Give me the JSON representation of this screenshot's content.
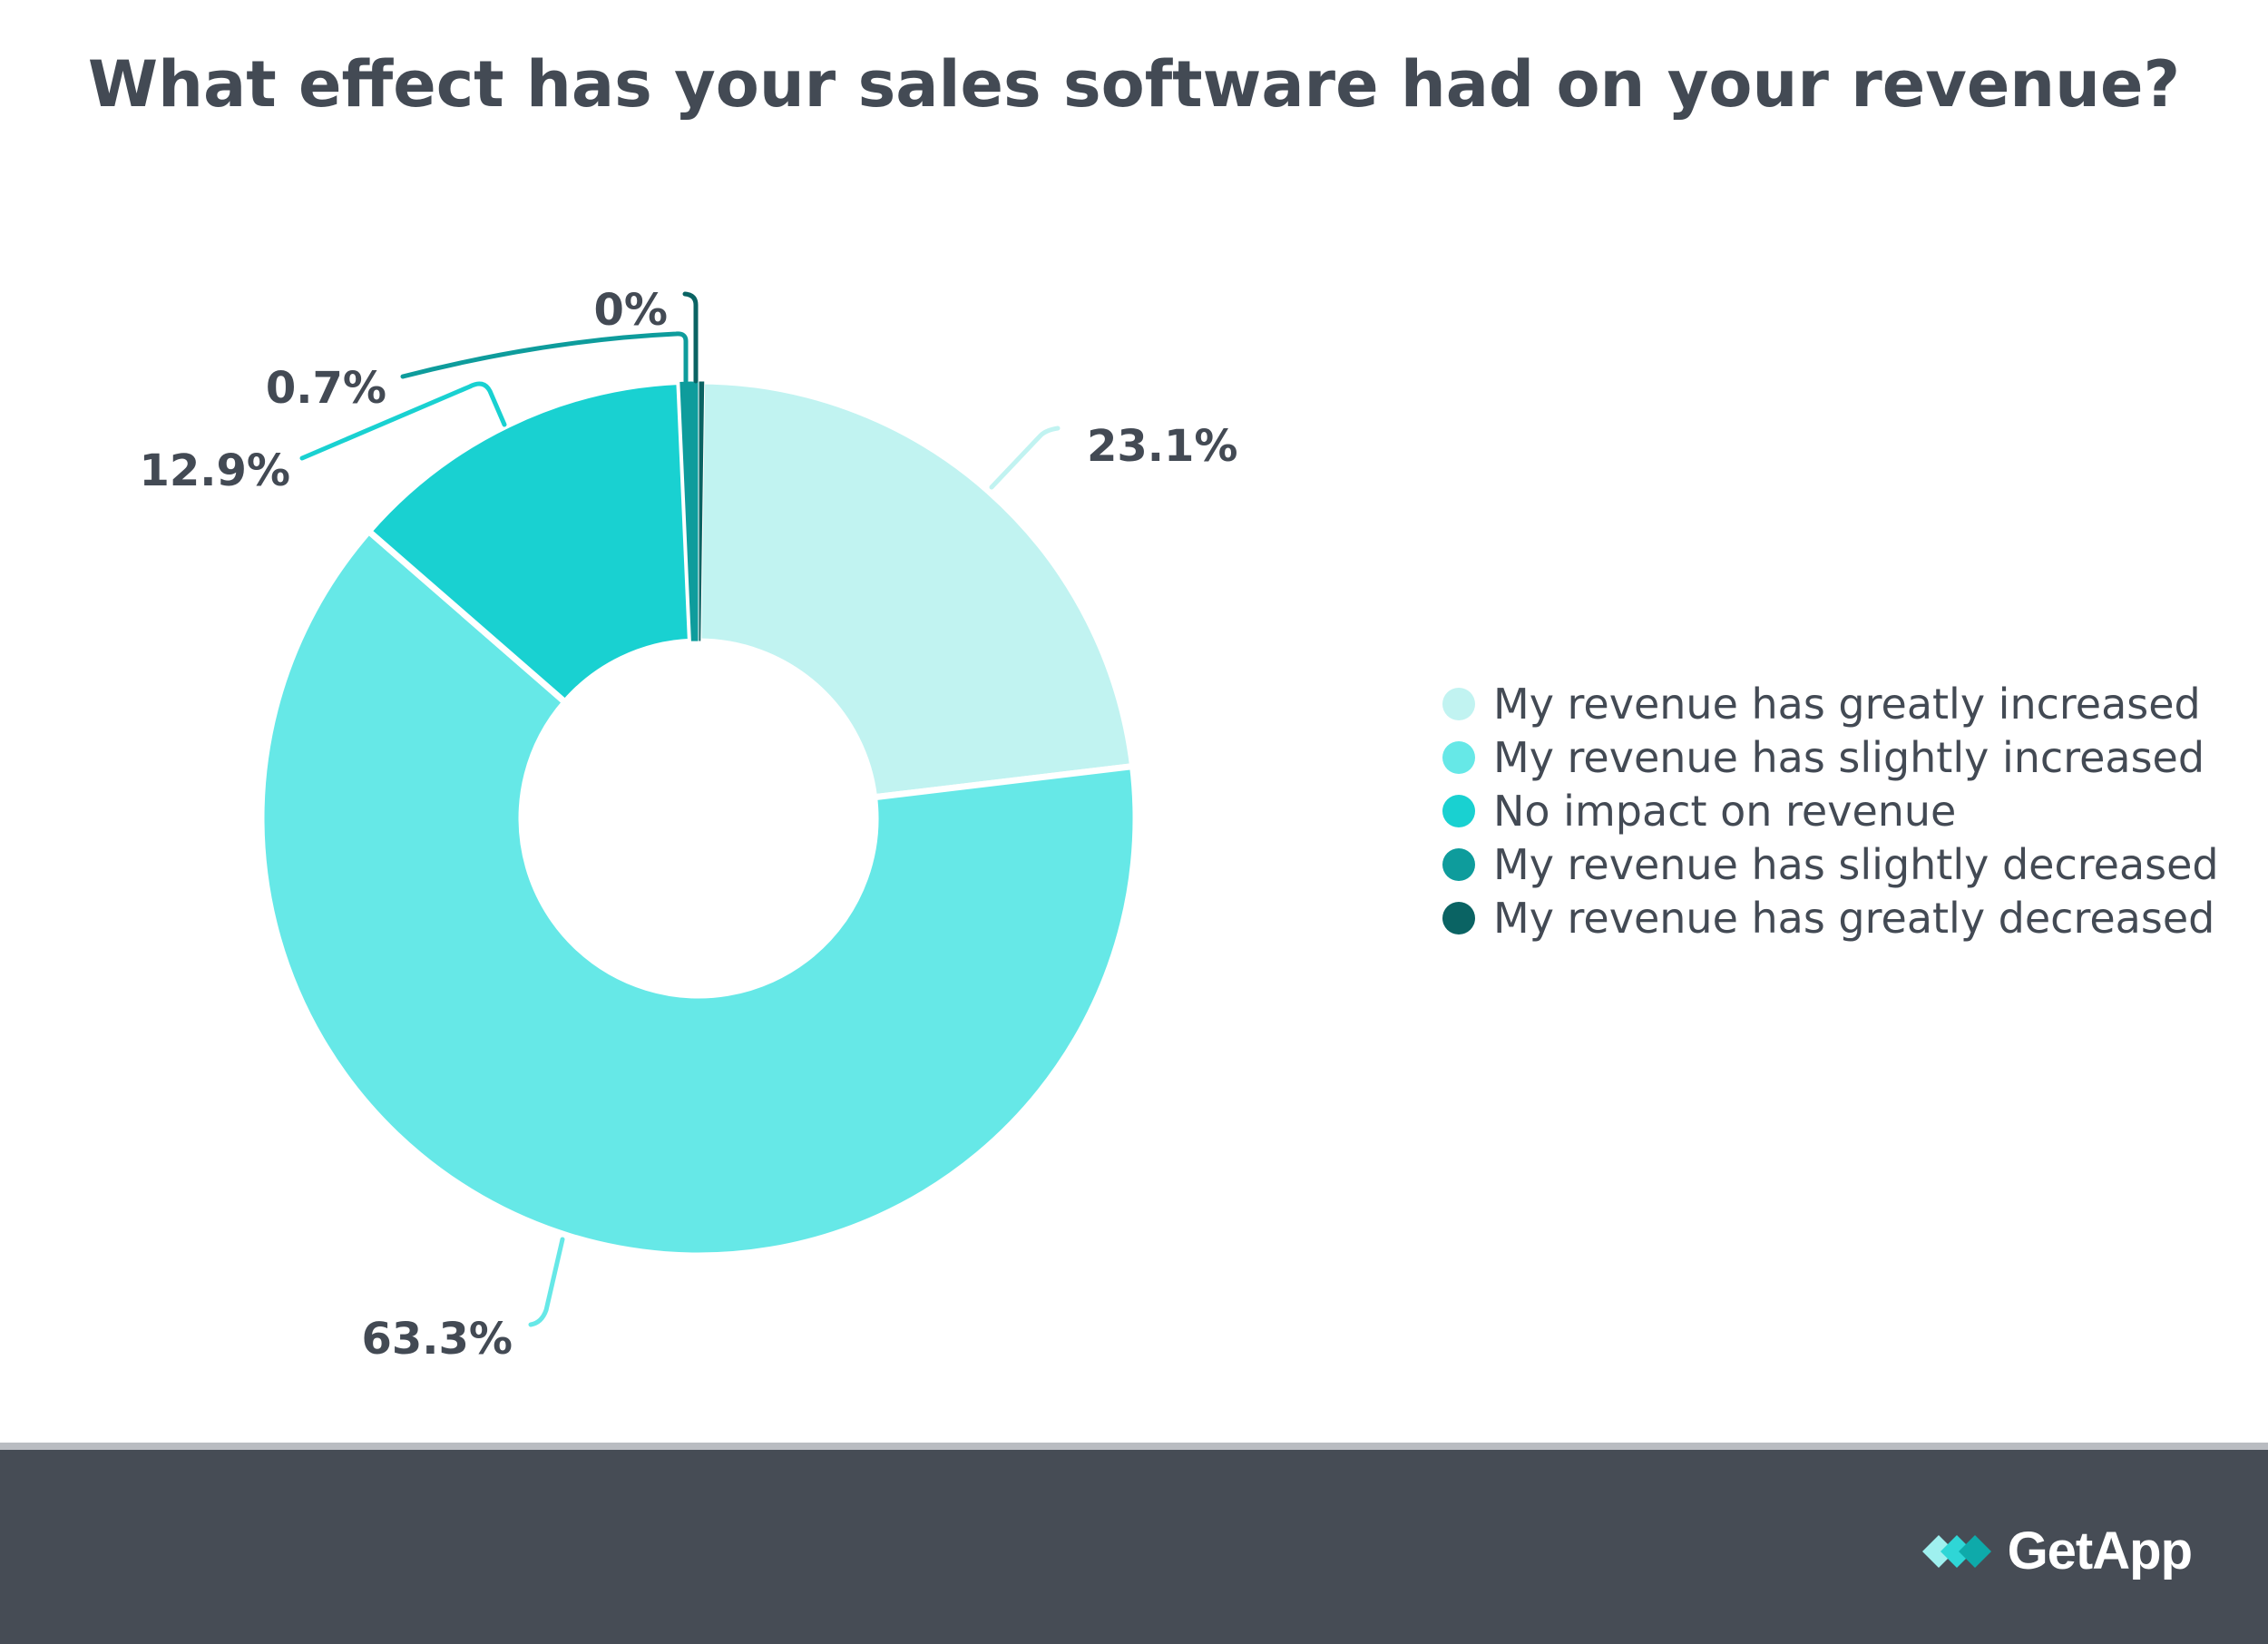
{
  "chart_data": {
    "type": "pie",
    "subtype": "donut",
    "title": "What effect has your sales software had on your revenue?",
    "categories": [
      "My revenue has greatly increased",
      "My revenue has slightly increased",
      "No impact on revenue",
      "My revenue has slightly decreased",
      "My revenue has greatly decreased"
    ],
    "values": [
      23.1,
      63.3,
      12.9,
      0.7,
      0
    ],
    "value_labels": [
      "23.1%",
      "63.3%",
      "12.9%",
      "0.7%",
      "0%"
    ],
    "colors": [
      "#c1f3f1",
      "#66e8e7",
      "#19d1d1",
      "#0e9c9c",
      "#0a6363"
    ],
    "legend_position": "right"
  },
  "footer": {
    "brand": "GetApp",
    "brand_icon": "getapp-logo-icon"
  }
}
